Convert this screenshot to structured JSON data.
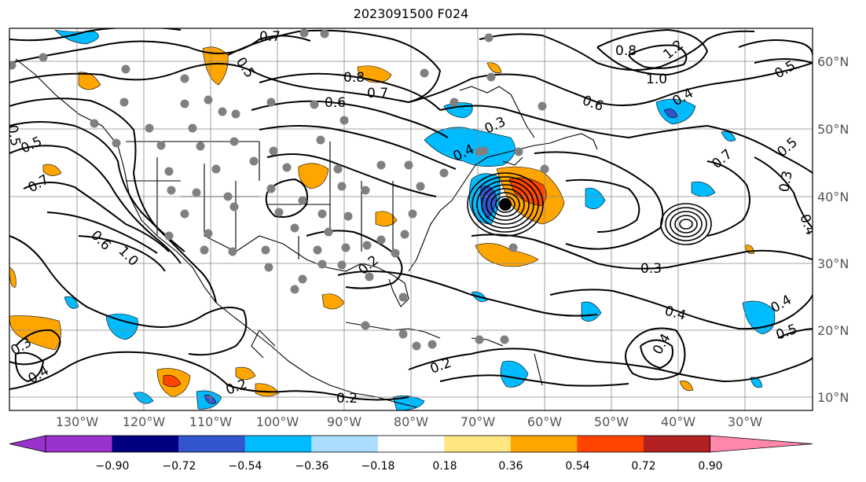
{
  "title": "2023091500 F024",
  "lat_labels": [
    "60°N",
    "50°N",
    "40°N",
    "30°N",
    "20°N",
    "10°N"
  ],
  "lon_labels": [
    "130°W",
    "120°W",
    "110°W",
    "100°W",
    "90°W",
    "80°W",
    "70°W",
    "60°W",
    "50°W",
    "40°W",
    "30°W"
  ],
  "colorbar": {
    "ticks": [
      "−0.90",
      "−0.72",
      "−0.54",
      "−0.36",
      "−0.18",
      "0.18",
      "0.36",
      "0.54",
      "0.72",
      "0.90"
    ],
    "colors": [
      "#9933cc",
      "#000080",
      "#3355cc",
      "#00bbff",
      "#aaddff",
      "#ffffff",
      "#ffe680",
      "#ffa500",
      "#ff4500",
      "#b22222",
      "#ff88aa"
    ]
  },
  "contour_labels": [
    {
      "text": "0.7"
    },
    {
      "text": "0.5"
    },
    {
      "text": "0.8"
    },
    {
      "text": "0.7"
    },
    {
      "text": "0.6"
    },
    {
      "text": "0.8"
    },
    {
      "text": "1.2"
    },
    {
      "text": "1.0"
    },
    {
      "text": "0.6"
    },
    {
      "text": "0.5"
    },
    {
      "text": "0.5"
    },
    {
      "text": "0.5"
    },
    {
      "text": "0.7"
    },
    {
      "text": "0.3"
    },
    {
      "text": "0.4"
    },
    {
      "text": "0.5"
    },
    {
      "text": "0.7"
    },
    {
      "text": "0.6"
    },
    {
      "text": "1.0"
    },
    {
      "text": "0.3"
    },
    {
      "text": "0.4"
    },
    {
      "text": "0.4"
    },
    {
      "text": "0.5"
    },
    {
      "text": "0.3"
    },
    {
      "text": "0.4"
    },
    {
      "text": "0.2"
    },
    {
      "text": "0.2"
    },
    {
      "text": "0.2"
    },
    {
      "text": "0.2"
    },
    {
      "text": "0.4"
    },
    {
      "text": "0.3"
    },
    {
      "text": "0.4"
    },
    {
      "text": "0.4"
    }
  ]
}
